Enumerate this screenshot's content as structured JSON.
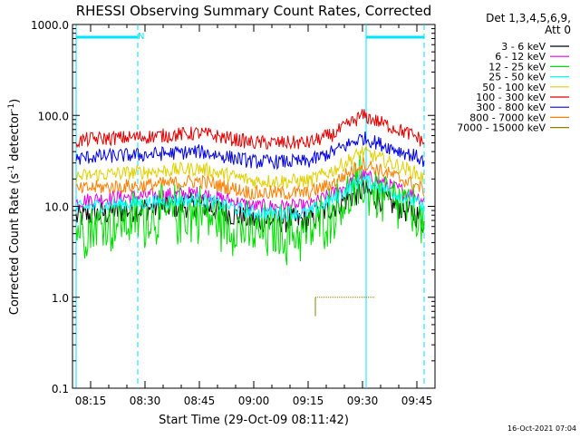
{
  "chart_data": {
    "type": "line",
    "title": "RHESSI Observing Summary Count Rates, Corrected",
    "xlabel": "Start Time (29-Oct-09 08:11:42)",
    "ylabel_main": "Corrected Count Rate (s",
    "ylabel_sup1": "-1",
    "ylabel_mid": " detector",
    "ylabel_sup2": "-1",
    "ylabel_end": ")",
    "y_scale": "log",
    "ylim": [
      0.1,
      1000
    ],
    "xlim": [
      "08:10",
      "09:50"
    ],
    "x_ticks": [
      "08:15",
      "08:30",
      "08:45",
      "09:00",
      "09:15",
      "09:30",
      "09:45"
    ],
    "y_ticks": [
      {
        "value": 1000,
        "label": "1000.0"
      },
      {
        "value": 100,
        "label": "100.0"
      },
      {
        "value": 10,
        "label": "10.0"
      },
      {
        "value": 1,
        "label": "1.0"
      },
      {
        "value": 0.1,
        "label": "0.1"
      }
    ],
    "legend_header": [
      "Det 1,3,4,5,6,9,",
      "Att 0"
    ],
    "legend_position": "right",
    "annotations": {
      "night_marker": "N"
    },
    "vertical_lines": [
      {
        "time": "08:11",
        "style": "solid",
        "color": "#00e5ff"
      },
      {
        "time": "08:28",
        "style": "dashed",
        "color": "#00e5ff"
      },
      {
        "time": "09:31",
        "style": "solid",
        "color": "#00e5ff"
      },
      {
        "time": "09:47",
        "style": "dashed",
        "color": "#00e5ff"
      }
    ],
    "night_bars": [
      {
        "start": "08:11",
        "end": "08:28",
        "color": "#00e5ff"
      },
      {
        "start": "09:31",
        "end": "09:47",
        "color": "#00e5ff"
      }
    ],
    "series": [
      {
        "name": "3 - 6 keV",
        "color": "#000000",
        "x": [
          "08:11",
          "08:15",
          "08:30",
          "08:45",
          "09:00",
          "09:15",
          "09:22",
          "09:30",
          "09:45",
          "09:47"
        ],
        "values": [
          7.5,
          8,
          9.5,
          10.5,
          7,
          7,
          10,
          15,
          8,
          6.5
        ]
      },
      {
        "name": "6 - 12 keV",
        "color": "#e000e0",
        "x": [
          "08:11",
          "08:15",
          "08:30",
          "08:45",
          "09:00",
          "09:15",
          "09:22",
          "09:30",
          "09:45",
          "09:47"
        ],
        "values": [
          11,
          12,
          13,
          14,
          10,
          10,
          14,
          22,
          13,
          11.5
        ]
      },
      {
        "name": "12 - 25 keV",
        "color": "#00e000",
        "x": [
          "08:11",
          "08:15",
          "08:30",
          "08:45",
          "09:00",
          "09:15",
          "09:22",
          "09:30",
          "09:45",
          "09:47"
        ],
        "values": [
          5.5,
          6,
          7.5,
          8.5,
          5,
          5,
          9,
          17,
          8,
          5
        ]
      },
      {
        "name": "25 - 50 keV",
        "color": "#00ffff",
        "x": [
          "08:11",
          "08:15",
          "08:30",
          "08:45",
          "09:00",
          "09:15",
          "09:22",
          "09:30",
          "09:45",
          "09:47"
        ],
        "values": [
          9.5,
          10,
          11,
          12,
          8.5,
          8.5,
          12,
          20,
          11,
          9
        ]
      },
      {
        "name": "50 - 100 keV",
        "color": "#e0d000",
        "x": [
          "08:11",
          "08:15",
          "08:30",
          "08:45",
          "09:00",
          "09:15",
          "09:22",
          "09:30",
          "09:45",
          "09:47"
        ],
        "values": [
          21,
          22,
          24,
          26,
          19,
          19,
          25,
          40,
          23,
          20
        ]
      },
      {
        "name": "100 - 300 keV",
        "color": "#e00000",
        "x": [
          "08:11",
          "08:15",
          "08:30",
          "08:45",
          "09:00",
          "09:15",
          "09:22",
          "09:30",
          "09:45",
          "09:47"
        ],
        "values": [
          52,
          55,
          58,
          64,
          50,
          50,
          62,
          100,
          58,
          50
        ]
      },
      {
        "name": "300 - 800 keV",
        "color": "#0000e0",
        "x": [
          "08:11",
          "08:15",
          "08:30",
          "08:45",
          "09:00",
          "09:15",
          "09:22",
          "09:30",
          "09:45",
          "09:47"
        ],
        "values": [
          33,
          35,
          37,
          40,
          31,
          31,
          40,
          57,
          35,
          31
        ]
      },
      {
        "name": "800 - 7000 keV",
        "color": "#ff8000",
        "x": [
          "08:11",
          "08:15",
          "08:30",
          "08:45",
          "09:00",
          "09:15",
          "09:22",
          "09:30",
          "09:45",
          "09:47"
        ],
        "values": [
          15,
          16,
          17,
          19,
          14,
          14,
          18,
          30,
          17,
          15
        ]
      },
      {
        "name": "7000 - 15000 keV",
        "color": "#8b8000",
        "x": [
          "09:17",
          "09:18",
          "09:20",
          "09:22",
          "09:25",
          "09:28",
          "09:30",
          "09:33"
        ],
        "values": [
          1.0,
          1.0,
          1.0,
          1.0,
          1.0,
          1.0,
          1.0,
          1.0
        ]
      }
    ],
    "footer_timestamp": "16-Oct-2021 07:04"
  }
}
